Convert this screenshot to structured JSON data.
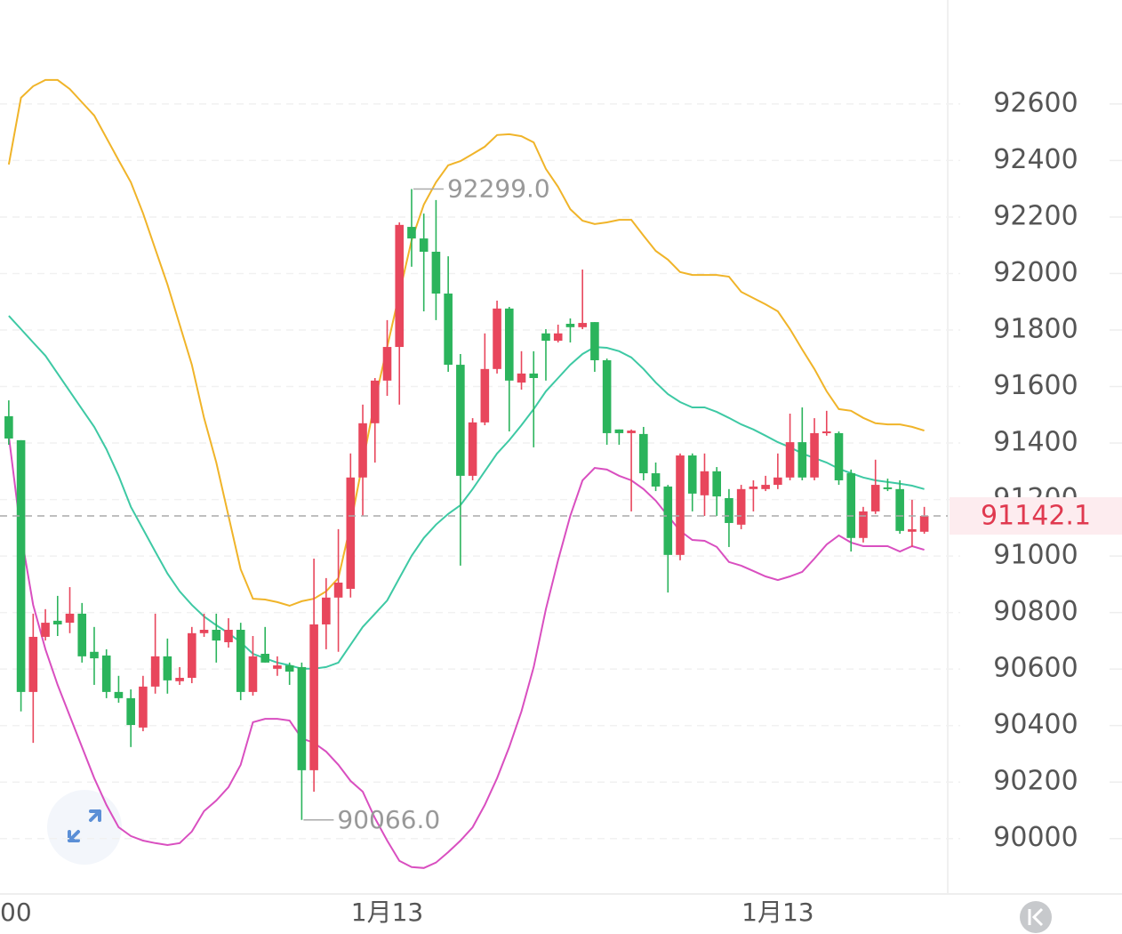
{
  "chart_data": {
    "type": "candlestick",
    "categories": [
      "00",
      null,
      null,
      null,
      null,
      null,
      null,
      null,
      null,
      null,
      null,
      null,
      null,
      null,
      null,
      null,
      null,
      null,
      null,
      null,
      null,
      null,
      null,
      null,
      null,
      null,
      null,
      null,
      null,
      null,
      null,
      "1月13",
      null,
      null,
      null,
      null,
      null,
      null,
      null,
      null,
      null,
      null,
      null,
      null,
      null,
      null,
      null,
      null,
      null,
      null,
      null,
      null,
      null,
      null,
      null,
      null,
      null,
      null,
      null,
      null,
      null,
      null,
      null,
      "1月13",
      null,
      null,
      null,
      null,
      null,
      null,
      null,
      null,
      null,
      null,
      null,
      null
    ],
    "open": [
      91495,
      91410,
      90519,
      90714,
      90771,
      90764,
      90796,
      90661,
      90648,
      90519,
      90497,
      90393,
      90538,
      90645,
      90557,
      90569,
      90727,
      90739,
      90695,
      90739,
      90519,
      90654,
      90601,
      90613,
      90607,
      90242,
      90758,
      90853,
      90884,
      91278,
      91470,
      91621,
      91740,
      92165,
      92124,
      92077,
      91929,
      91677,
      91284,
      91473,
      91662,
      91876,
      91614,
      91646,
      91788,
      91762,
      91822,
      91810,
      91828,
      91693,
      91448,
      91435,
      91432,
      91293,
      91246,
      91004,
      91356,
      91215,
      91300,
      91205,
      91111,
      91237,
      91237,
      91252,
      91278,
      91403,
      91278,
      91435,
      91435,
      91293,
      91064,
      91158,
      91243,
      91237,
      91086,
      91086
    ],
    "high": [
      91551,
      91410,
      90796,
      90812,
      90859,
      90890,
      90834,
      90749,
      90670,
      90576,
      90528,
      90576,
      90796,
      90708,
      90607,
      90749,
      90796,
      90796,
      90780,
      90764,
      90717,
      90749,
      90645,
      90623,
      90623,
      90991,
      90922,
      91095,
      91363,
      91536,
      91630,
      91835,
      92181,
      92299,
      92212,
      92260,
      92061,
      91715,
      91488,
      91788,
      91904,
      91882,
      91725,
      91725,
      91803,
      91819,
      91841,
      92014,
      91828,
      91699,
      91448,
      91448,
      91457,
      91331,
      91252,
      91363,
      91363,
      91363,
      91315,
      91237,
      91252,
      91268,
      91284,
      91363,
      91504,
      91526,
      91488,
      91514,
      91441,
      91306,
      91174,
      91341,
      91274,
      91268,
      91199,
      91174
    ],
    "low": [
      91394,
      90450,
      90339,
      90701,
      90717,
      90727,
      90623,
      90544,
      90497,
      90481,
      90324,
      90380,
      90513,
      90513,
      90544,
      90550,
      90714,
      90623,
      90676,
      90490,
      90506,
      90623,
      90576,
      90544,
      90066,
      90166,
      90670,
      90661,
      90853,
      91142,
      91331,
      91567,
      91536,
      92024,
      91866,
      91835,
      91652,
      90966,
      91268,
      91463,
      91646,
      91441,
      91589,
      91385,
      91621,
      91756,
      91756,
      91803,
      91652,
      91394,
      91394,
      91158,
      91268,
      91230,
      90871,
      90985,
      91158,
      91142,
      91142,
      91032,
      91095,
      91158,
      91230,
      91237,
      91268,
      91268,
      91268,
      91426,
      91252,
      91016,
      91048,
      91149,
      91230,
      91079,
      91032,
      91079
    ],
    "close": [
      91416,
      90519,
      90714,
      90764,
      90758,
      90796,
      90645,
      90638,
      90519,
      90497,
      90402,
      90538,
      90645,
      90560,
      90569,
      90727,
      90739,
      90701,
      90739,
      90519,
      90645,
      90623,
      90613,
      90591,
      90242,
      90758,
      90853,
      90906,
      91278,
      91470,
      91621,
      91740,
      92172,
      92124,
      92077,
      91929,
      91677,
      91284,
      91473,
      91662,
      91876,
      91621,
      91646,
      91630,
      91762,
      91788,
      91810,
      91825,
      91693,
      91435,
      91435,
      91444,
      91293,
      91246,
      91004,
      91356,
      91221,
      91300,
      91211,
      91117,
      91237,
      91246,
      91252,
      91278,
      91403,
      91278,
      91435,
      91441,
      91268,
      91064,
      91158,
      91252,
      91237,
      91089,
      91095,
      91142.1
    ],
    "up_color": "#e8465c",
    "down_color": "#2bb45c",
    "lines": [
      {
        "color": "#f0b429",
        "values": [
          92386,
          92622,
          92663,
          92685,
          92685,
          92653,
          92606,
          92559,
          92480,
          92401,
          92323,
          92213,
          92087,
          91961,
          91819,
          91677,
          91489,
          91331,
          91142,
          90953,
          90849,
          90846,
          90837,
          90824,
          90840,
          90849,
          90875,
          90922,
          91111,
          91331,
          91551,
          91740,
          91929,
          92118,
          92244,
          92323,
          92383,
          92398,
          92423,
          92449,
          92490,
          92493,
          92486,
          92464,
          92370,
          92307,
          92228,
          92187,
          92175,
          92181,
          92190,
          92190,
          92134,
          92080,
          92049,
          92005,
          91995,
          91995,
          91995,
          91989,
          91935,
          91913,
          91891,
          91866,
          91803,
          91731,
          91662,
          91583,
          91520,
          91514,
          91489,
          91470,
          91466,
          91466,
          91457,
          91444
        ]
      },
      {
        "color": "#3ec9a4",
        "values": [
          91850,
          91803,
          91756,
          91709,
          91646,
          91583,
          91520,
          91457,
          91378,
          91284,
          91174,
          91095,
          91016,
          90938,
          90875,
          90827,
          90786,
          90755,
          90727,
          90695,
          90654,
          90638,
          90623,
          90613,
          90601,
          90601,
          90607,
          90623,
          90686,
          90749,
          90796,
          90843,
          90922,
          91001,
          91064,
          91111,
          91149,
          91180,
          91237,
          91300,
          91363,
          91410,
          91463,
          91520,
          91583,
          91630,
          91677,
          91715,
          91740,
          91737,
          91725,
          91703,
          91662,
          91614,
          91573,
          91545,
          91526,
          91526,
          91510,
          91489,
          91466,
          91448,
          91426,
          91403,
          91385,
          91363,
          91347,
          91331,
          91309,
          91293,
          91278,
          91268,
          91262,
          91256,
          91249,
          91237
        ]
      },
      {
        "color": "#d94fc0",
        "values": [
          91425,
          91079,
          90827,
          90670,
          90544,
          90434,
          90324,
          90214,
          90119,
          90040,
          90009,
          89993,
          89984,
          89977,
          89984,
          90025,
          90097,
          90135,
          90182,
          90261,
          90412,
          90424,
          90424,
          90418,
          90355,
          90339,
          90308,
          90261,
          90204,
          90166,
          90072,
          89993,
          89921,
          89899,
          89896,
          89915,
          89952,
          89993,
          90040,
          90119,
          90214,
          90324,
          90450,
          90607,
          90812,
          90985,
          91142,
          91268,
          91312,
          91306,
          91284,
          91268,
          91237,
          91196,
          91142,
          91089,
          91057,
          91054,
          91032,
          90979,
          90966,
          90947,
          90928,
          90915,
          90928,
          90944,
          90991,
          91041,
          91073,
          91048,
          91035,
          91035,
          91035,
          91016,
          91035,
          91022
        ]
      }
    ],
    "annotations": [
      "92299.0",
      "90066.0"
    ],
    "ylim": [
      89804,
      92968
    ],
    "yticks": [
      90000,
      90200,
      90400,
      90600,
      90800,
      91000,
      91200,
      91400,
      91600,
      91800,
      92000,
      92200,
      92400,
      92600
    ],
    "grid": true
  }
}
